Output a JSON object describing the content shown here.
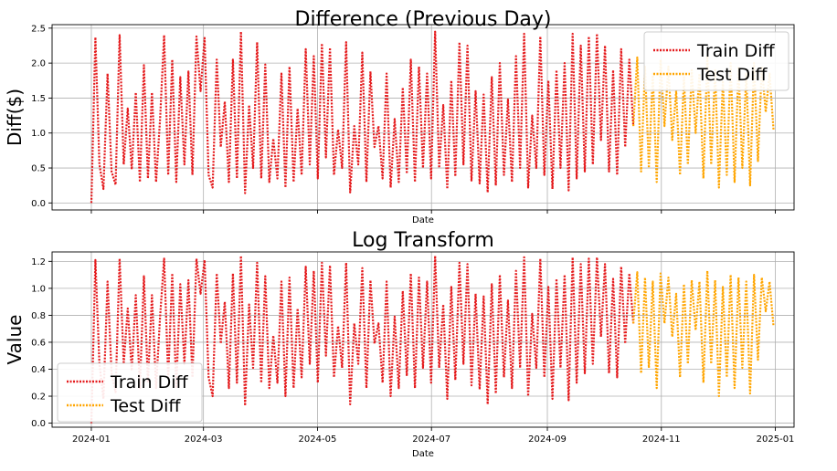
{
  "chart_data": [
    {
      "type": "line",
      "title": "Difference (Previous Day)",
      "xlabel": "Date",
      "ylabel": "Diff($)",
      "ylim": [
        -0.1,
        2.55
      ],
      "yticks": [
        "0.0",
        "0.5",
        "1.0",
        "1.5",
        "2.0",
        "2.5"
      ],
      "ytick_values": [
        0,
        0.5,
        1.0,
        1.5,
        2.0,
        2.5
      ],
      "legend_position": "top-right",
      "grid": true,
      "series": [
        {
          "name": "Train Diff",
          "color": "#e41a1c",
          "style": "dotted",
          "start": "2024-01-01",
          "end": "2024-10-17",
          "values": [
            0.0,
            2.37,
            0.55,
            0.2,
            1.85,
            0.45,
            0.26,
            2.4,
            0.55,
            1.35,
            0.48,
            1.58,
            0.3,
            1.97,
            0.35,
            1.58,
            0.3,
            1.2,
            2.4,
            0.4,
            2.05,
            0.3,
            1.8,
            0.55,
            1.88,
            0.4,
            2.38,
            1.6,
            2.36,
            0.4,
            0.22,
            2.05,
            0.8,
            1.45,
            0.3,
            2.05,
            0.35,
            2.45,
            0.14,
            1.4,
            0.5,
            2.3,
            0.35,
            1.98,
            0.3,
            0.92,
            0.35,
            1.85,
            0.22,
            1.95,
            0.3,
            1.35,
            0.4,
            2.2,
            0.55,
            2.1,
            0.35,
            2.28,
            0.65,
            2.22,
            0.4,
            1.05,
            0.5,
            2.3,
            0.15,
            1.1,
            0.55,
            2.15,
            0.3,
            1.88,
            0.8,
            1.1,
            0.35,
            1.85,
            0.22,
            1.2,
            0.3,
            1.65,
            0.42,
            2.05,
            0.3,
            1.95,
            0.5,
            1.85,
            0.35,
            2.45,
            0.5,
            1.4,
            0.2,
            1.75,
            0.38,
            2.3,
            0.55,
            2.25,
            0.32,
            1.6,
            0.28,
            1.55,
            0.15,
            1.8,
            0.25,
            2.0,
            0.4,
            1.48,
            0.3,
            2.1,
            0.5,
            2.42,
            0.22,
            1.25,
            0.5,
            2.38,
            0.4,
            1.75,
            0.2,
            1.9,
            0.5,
            2.0,
            0.18,
            2.42,
            0.35,
            2.25,
            0.45,
            2.38,
            0.55,
            2.42,
            0.9,
            2.25,
            0.45,
            1.9,
            0.4,
            2.2,
            0.8,
            2.05,
            1.1
          ]
        },
        {
          "name": "Test Diff",
          "color": "#ffa500",
          "style": "dotted",
          "start": "2024-10-17",
          "end": "2024-12-31",
          "values": [
            1.1,
            2.08,
            0.45,
            1.95,
            0.5,
            1.85,
            0.3,
            2.05,
            1.1,
            1.95,
            0.9,
            1.6,
            0.4,
            1.8,
            0.55,
            1.9,
            1.0,
            1.85,
            0.35,
            2.1,
            0.55,
            1.9,
            0.22,
            1.75,
            0.4,
            2.0,
            0.3,
            1.95,
            0.5,
            1.85,
            0.25,
            2.0,
            0.6,
            1.95,
            1.3,
            1.85,
            1.05
          ]
        }
      ]
    },
    {
      "type": "line",
      "title": "Log Transform",
      "xlabel": "Date",
      "ylabel": "Value",
      "ylim": [
        -0.03,
        1.27
      ],
      "yticks": [
        "0.0",
        "0.2",
        "0.4",
        "0.6",
        "0.8",
        "1.0",
        "1.2"
      ],
      "ytick_values": [
        0,
        0.2,
        0.4,
        0.6,
        0.8,
        1.0,
        1.2
      ],
      "xticks": [
        "2024-01",
        "2024-03",
        "2024-05",
        "2024-07",
        "2024-09",
        "2024-11",
        "2025-01"
      ],
      "xtick_dates": [
        "2024-01-01",
        "2024-03-01",
        "2024-05-01",
        "2024-07-01",
        "2024-09-01",
        "2024-11-01",
        "2025-01-01"
      ],
      "legend_position": "bottom-left",
      "grid": true,
      "series": [
        {
          "name": "Train Diff",
          "color": "#e41a1c",
          "style": "dotted",
          "start": "2024-01-01",
          "end": "2024-10-17",
          "values": [
            0.0,
            1.21,
            0.44,
            0.18,
            1.05,
            0.37,
            0.23,
            1.22,
            0.44,
            0.85,
            0.39,
            0.95,
            0.26,
            1.09,
            0.3,
            0.95,
            0.26,
            0.79,
            1.22,
            0.34,
            1.11,
            0.26,
            1.03,
            0.44,
            1.06,
            0.34,
            1.22,
            0.96,
            1.21,
            0.34,
            0.2,
            1.11,
            0.59,
            0.9,
            0.26,
            1.11,
            0.3,
            1.24,
            0.13,
            0.88,
            0.41,
            1.19,
            0.3,
            1.09,
            0.26,
            0.65,
            0.3,
            1.05,
            0.2,
            1.08,
            0.26,
            0.85,
            0.34,
            1.16,
            0.44,
            1.13,
            0.3,
            1.19,
            0.5,
            1.17,
            0.34,
            0.72,
            0.41,
            1.19,
            0.14,
            0.74,
            0.44,
            1.15,
            0.26,
            1.06,
            0.59,
            0.74,
            0.3,
            1.05,
            0.2,
            0.79,
            0.26,
            0.98,
            0.35,
            1.11,
            0.26,
            1.08,
            0.41,
            1.05,
            0.3,
            1.24,
            0.41,
            0.88,
            0.18,
            1.01,
            0.32,
            1.19,
            0.44,
            1.18,
            0.28,
            0.96,
            0.25,
            0.94,
            0.14,
            1.03,
            0.22,
            1.1,
            0.34,
            0.91,
            0.26,
            1.13,
            0.41,
            1.23,
            0.2,
            0.81,
            0.41,
            1.22,
            0.34,
            1.01,
            0.18,
            1.07,
            0.41,
            1.1,
            0.17,
            1.23,
            0.3,
            1.18,
            0.37,
            1.22,
            0.44,
            1.23,
            0.64,
            1.18,
            0.37,
            1.07,
            0.34,
            1.16,
            0.59,
            1.11,
            0.74
          ]
        },
        {
          "name": "Test Diff",
          "color": "#ffa500",
          "style": "dotted",
          "start": "2024-10-17",
          "end": "2024-12-31",
          "values": [
            0.74,
            1.12,
            0.37,
            1.08,
            0.41,
            1.05,
            0.26,
            1.11,
            0.74,
            1.08,
            0.64,
            0.96,
            0.34,
            1.03,
            0.44,
            1.06,
            0.69,
            1.05,
            0.3,
            1.13,
            0.44,
            1.06,
            0.2,
            1.01,
            0.34,
            1.1,
            0.26,
            1.08,
            0.41,
            1.05,
            0.22,
            1.1,
            0.47,
            1.08,
            0.83,
            1.05,
            0.72
          ]
        }
      ]
    }
  ]
}
